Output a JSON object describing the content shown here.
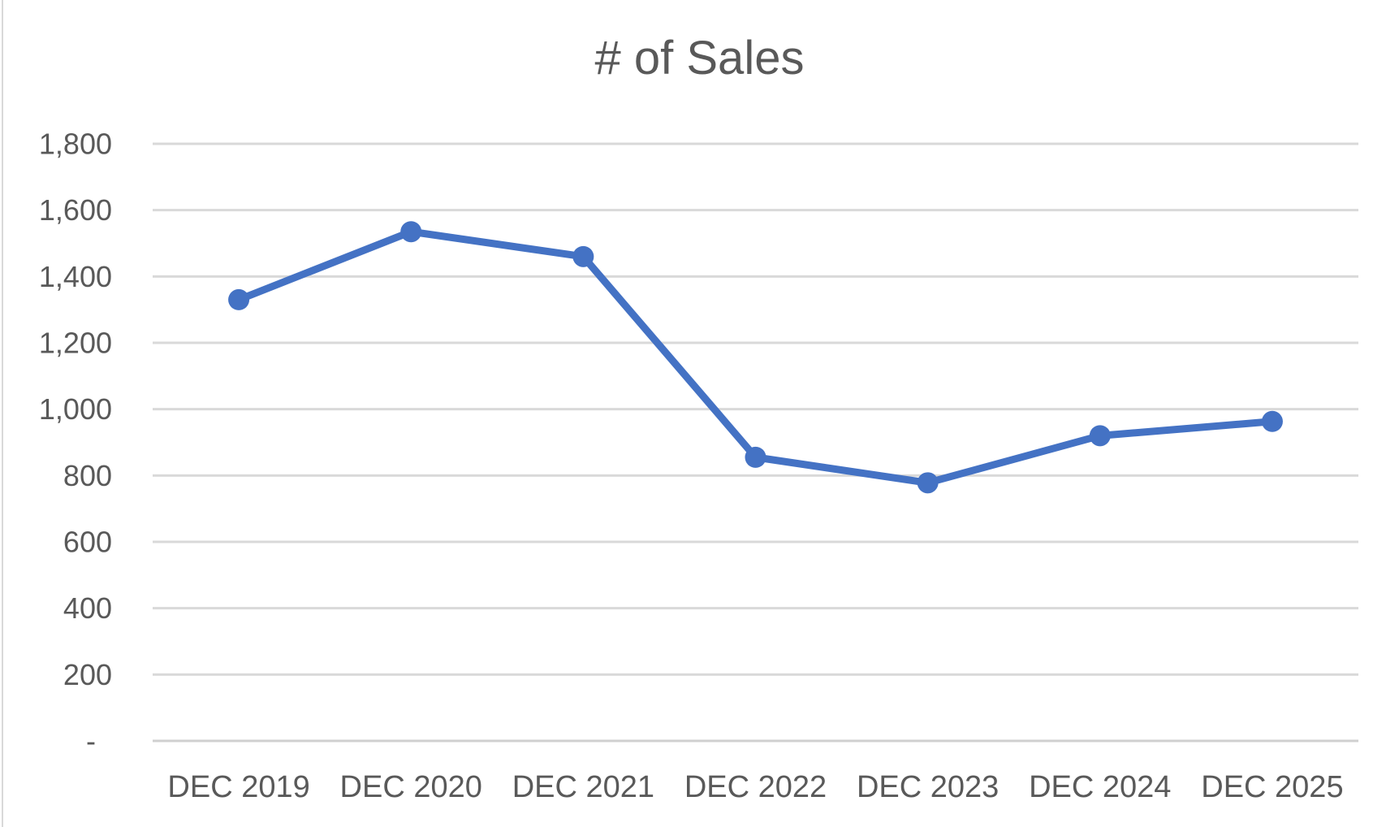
{
  "chart_data": {
    "type": "line",
    "title": "# of Sales",
    "categories": [
      "DEC 2019",
      "DEC 2020",
      "DEC 2021",
      "DEC 2022",
      "DEC 2023",
      "DEC 2024",
      "DEC 2025"
    ],
    "series": [
      {
        "name": "# of Sales",
        "values": [
          1330,
          1535,
          1460,
          855,
          778,
          920,
          963
        ]
      }
    ],
    "xlabel": "",
    "ylabel": "",
    "ylim": [
      0,
      1800
    ],
    "y_tick_interval": 200,
    "y_ticks": [
      {
        "value": 1800,
        "label": "1,800"
      },
      {
        "value": 1600,
        "label": "1,600"
      },
      {
        "value": 1400,
        "label": "1,400"
      },
      {
        "value": 1200,
        "label": "1,200"
      },
      {
        "value": 1000,
        "label": "1,000"
      },
      {
        "value": 800,
        "label": "800"
      },
      {
        "value": 600,
        "label": "600"
      },
      {
        "value": 400,
        "label": "400"
      },
      {
        "value": 200,
        "label": "200"
      },
      {
        "value": 0,
        "label": "-"
      }
    ],
    "grid": "horizontal",
    "legend": "none",
    "marker": "circle",
    "colors": {
      "line": "#4472C4",
      "marker": "#4472C4",
      "gridline": "#D9D9D9",
      "axis_line": "#D0D0D0",
      "text": "#595959",
      "background": "#FFFFFF",
      "frame_line": "#D9D9D9"
    }
  }
}
